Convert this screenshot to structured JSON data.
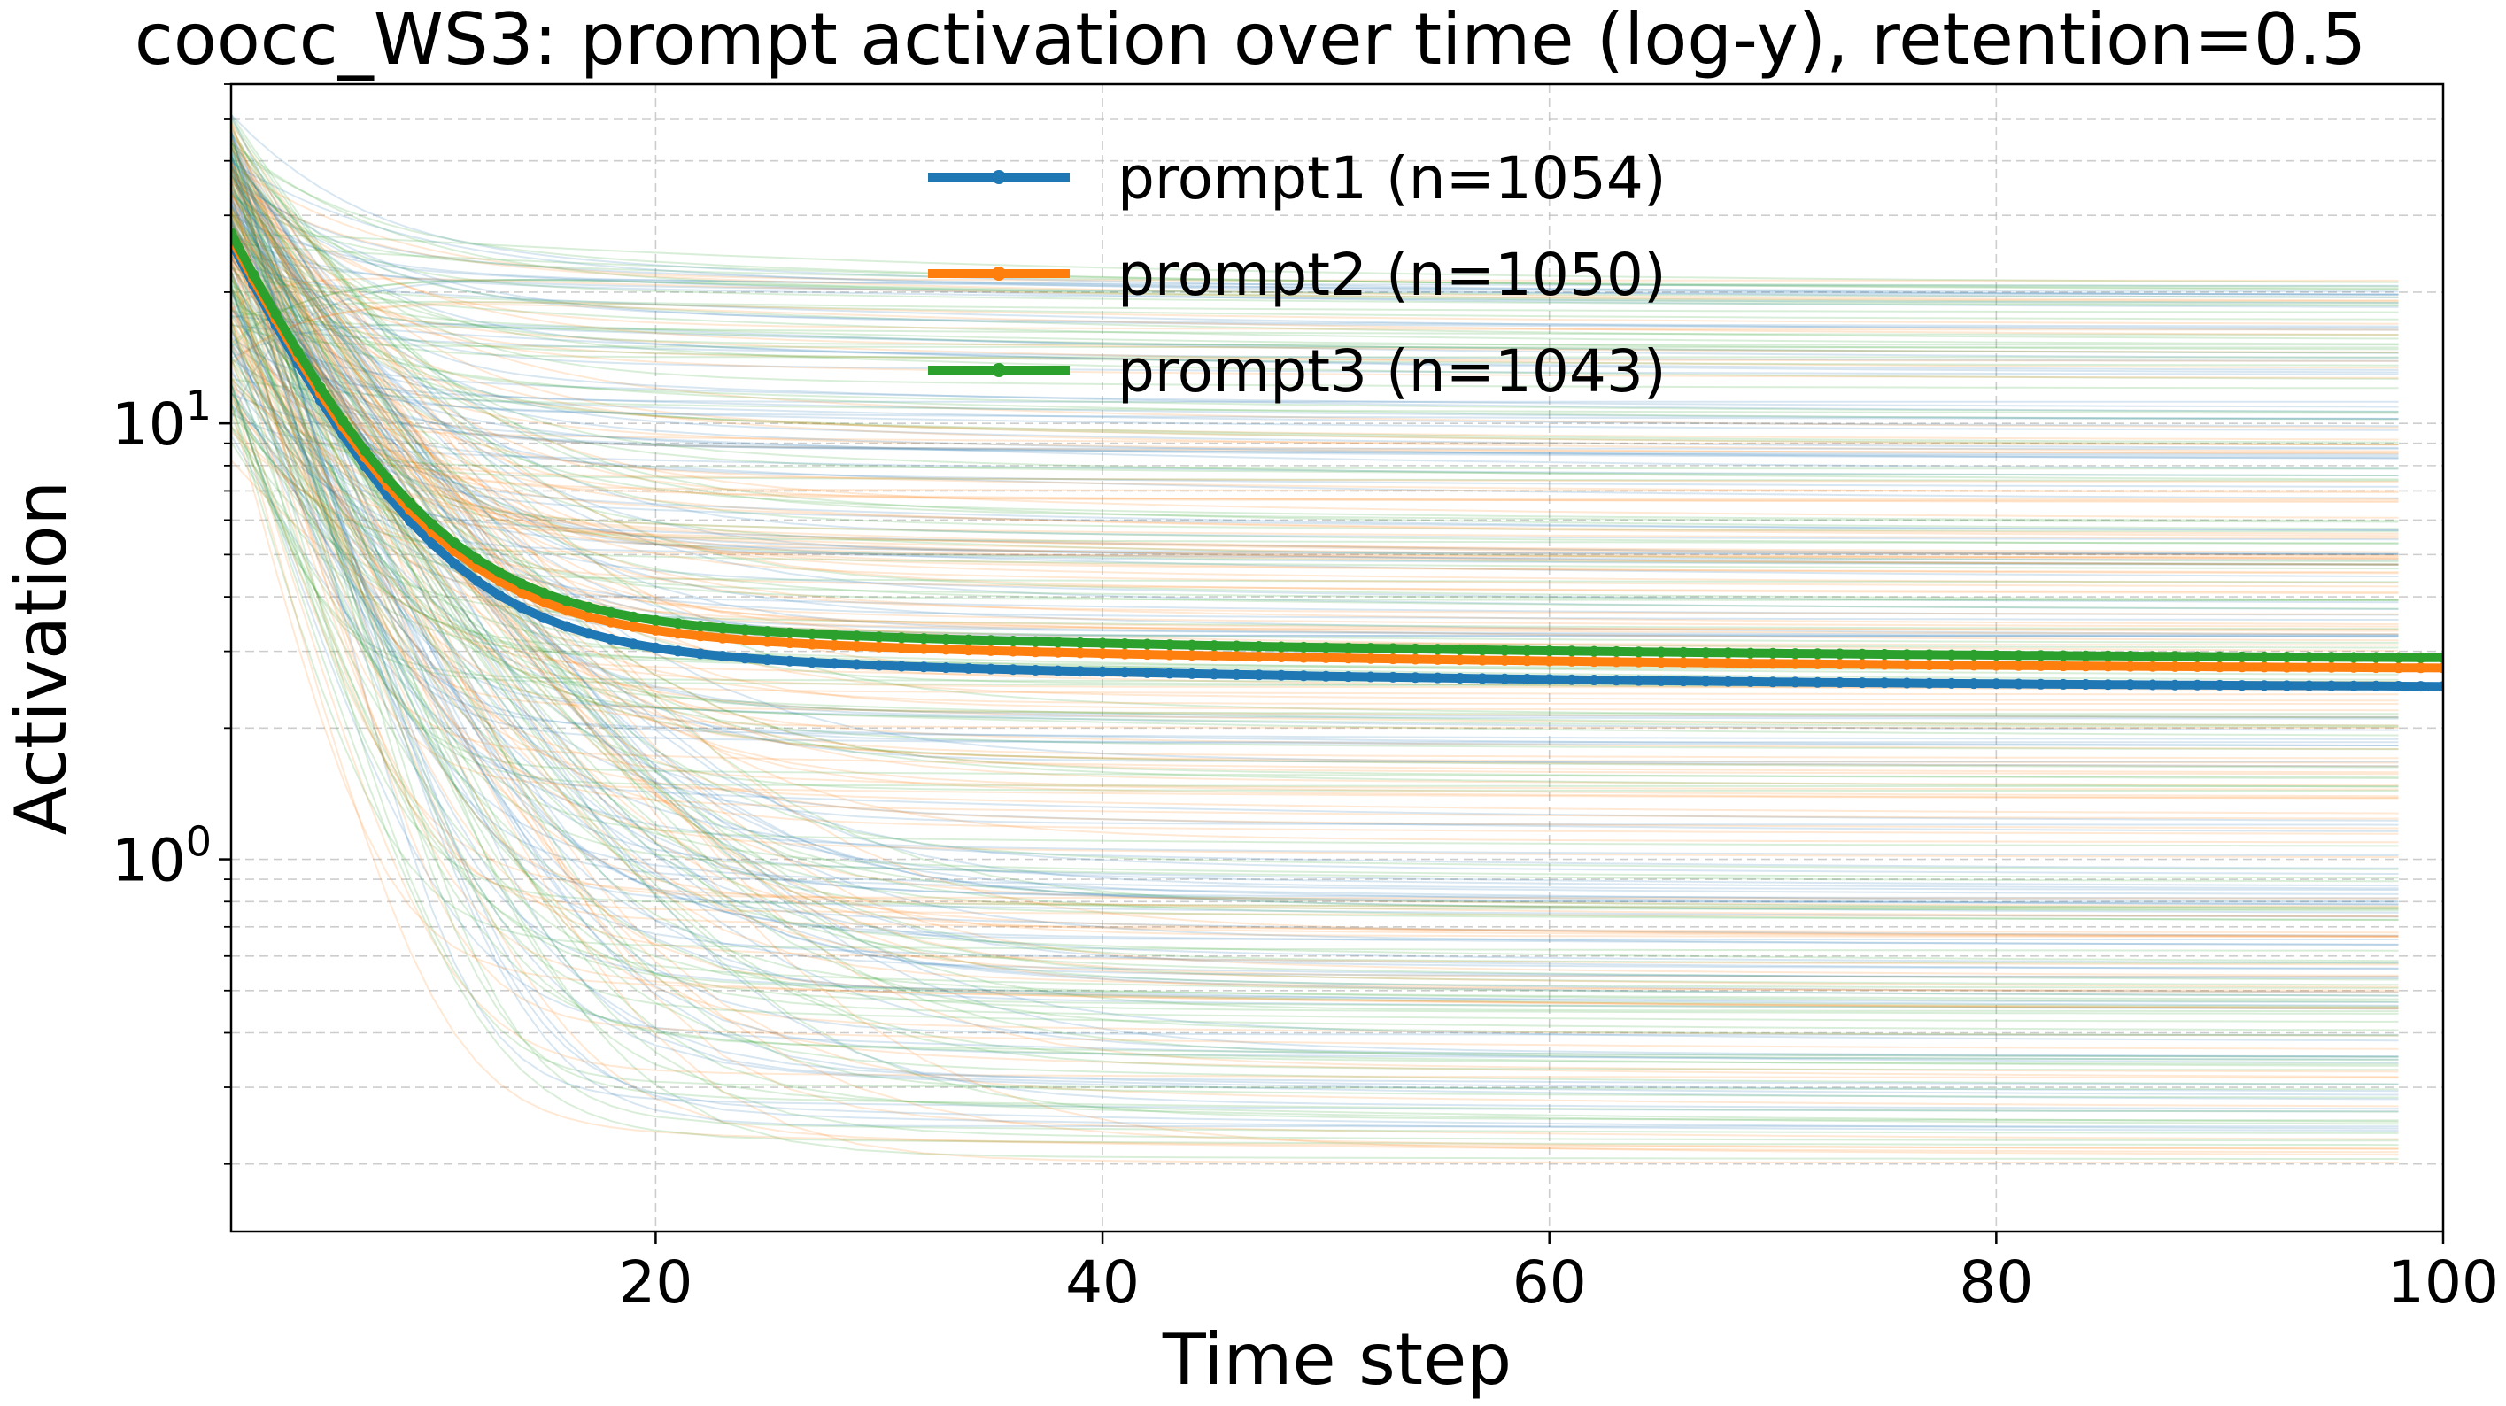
{
  "chart_data": {
    "type": "line",
    "title": "coocc_WS3: prompt activation over time (log-y), retention=0.5",
    "xlabel": "Time step",
    "ylabel": "Activation",
    "xlim": [
      1,
      100
    ],
    "ylim": [
      0.14,
      60
    ],
    "y_scale": "log",
    "grid": true,
    "legend_position": "upper-center",
    "x_ticks": [
      20,
      40,
      60,
      80,
      100
    ],
    "x_tick_labels": [
      "20",
      "40",
      "60",
      "80",
      "100"
    ],
    "y_ticks": [
      1,
      10
    ],
    "y_tick_labels": [
      {
        "base": "10",
        "exp": "0"
      },
      {
        "base": "10",
        "exp": "1"
      }
    ],
    "series": [
      {
        "name": "prompt1 (n=1054)",
        "color": "#1f77b4",
        "start": 20.0,
        "plateau": 2.45,
        "decay": 4.0,
        "slow_amp": 0.3,
        "slow_decay": 35.0
      },
      {
        "name": "prompt2 (n=1050)",
        "color": "#ff7f0e",
        "start": 20.5,
        "plateau": 2.7,
        "decay": 4.0,
        "slow_amp": 0.3,
        "slow_decay": 35.0
      },
      {
        "name": "prompt3 (n=1043)",
        "color": "#2ca02c",
        "start": 21.0,
        "plateau": 2.85,
        "decay": 4.0,
        "slow_amp": 0.3,
        "slow_decay": 35.0
      }
    ],
    "individual_traces": "about 1000 faint per-item traces per prompt, each decaying from roughly 10-40 at t=1 to its own plateau between about 0.2 and 25"
  }
}
